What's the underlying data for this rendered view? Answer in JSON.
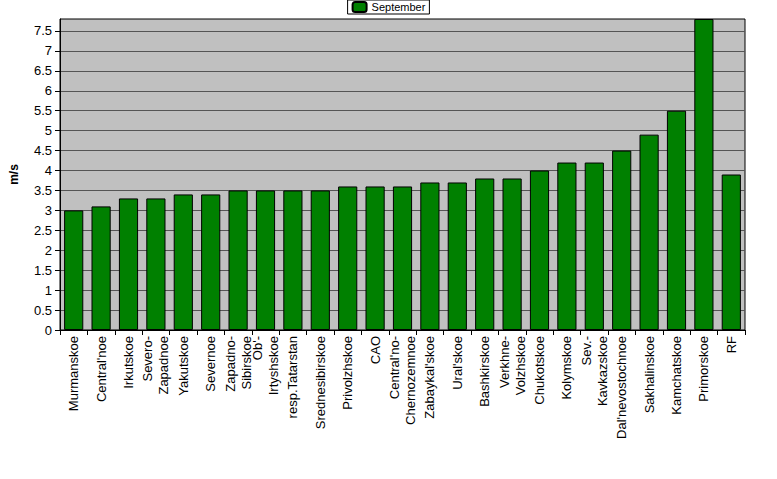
{
  "chart_data": {
    "type": "bar",
    "y_label": "m/s",
    "categories": [
      "Murmanskoe",
      "Central'noe",
      "Irkutskoe",
      "Severo-\nZapadnoe",
      "Yakutskoe",
      "Severnoe",
      "Zapadno-\nSibirskoe",
      "Ob'-\nIrtyshskoe",
      "resp.Tatarstan",
      "Srednesibirskoe",
      "Privolzhskoe",
      "CAO",
      "Central'no-\nChernozemnoe",
      "Zabaykal'skoe",
      "Ural'skoe",
      "Bashkirskoe",
      "Verkhne-\nVolzhskoe",
      "Chukotskoe",
      "Kolymskoe",
      "Sev.-\nKavkazskoe",
      "Dal'nevostochnoe",
      "Sakhalinskoe",
      "Kamchatskoe",
      "Primorskoe",
      "RF"
    ],
    "series": [
      {
        "name": "September",
        "color": "#008000",
        "values": [
          3.0,
          3.1,
          3.3,
          3.3,
          3.4,
          3.4,
          3.5,
          3.5,
          3.5,
          3.5,
          3.6,
          3.6,
          3.6,
          3.7,
          3.7,
          3.8,
          3.8,
          4.0,
          4.2,
          4.2,
          4.5,
          4.9,
          5.5,
          7.8,
          3.9
        ]
      }
    ],
    "ylim": [
      0,
      7.8
    ],
    "yticks": [
      0,
      0.5,
      1,
      1.5,
      2,
      2.5,
      3,
      3.5,
      4,
      4.5,
      5,
      5.5,
      6,
      6.5,
      7,
      7.5
    ],
    "grid": true,
    "legend": "top"
  }
}
